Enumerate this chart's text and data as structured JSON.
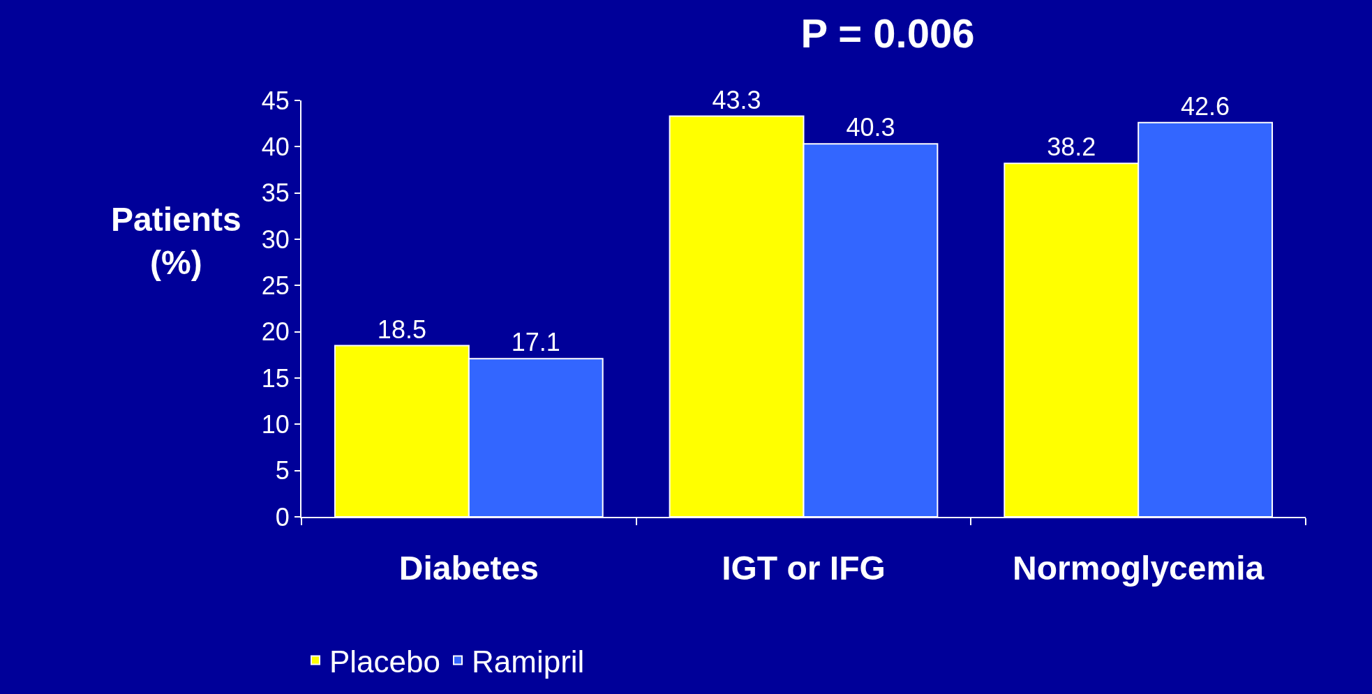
{
  "chart_data": {
    "type": "bar",
    "title": "P = 0.006",
    "ylabel": "Patients\n(%)",
    "categories": [
      "Diabetes",
      "IGT or IFG",
      "Normoglycemia"
    ],
    "series": [
      {
        "name": "Placebo",
        "color": "#ffff00",
        "values": [
          18.5,
          43.3,
          38.2
        ]
      },
      {
        "name": "Ramipril",
        "color": "#3366ff",
        "values": [
          17.1,
          40.3,
          42.6
        ]
      }
    ],
    "ylim": [
      0,
      45
    ],
    "yticks": [
      0,
      5,
      10,
      15,
      20,
      25,
      30,
      35,
      40,
      45
    ],
    "data_labels": true,
    "grid": false,
    "legend": "bottom"
  }
}
